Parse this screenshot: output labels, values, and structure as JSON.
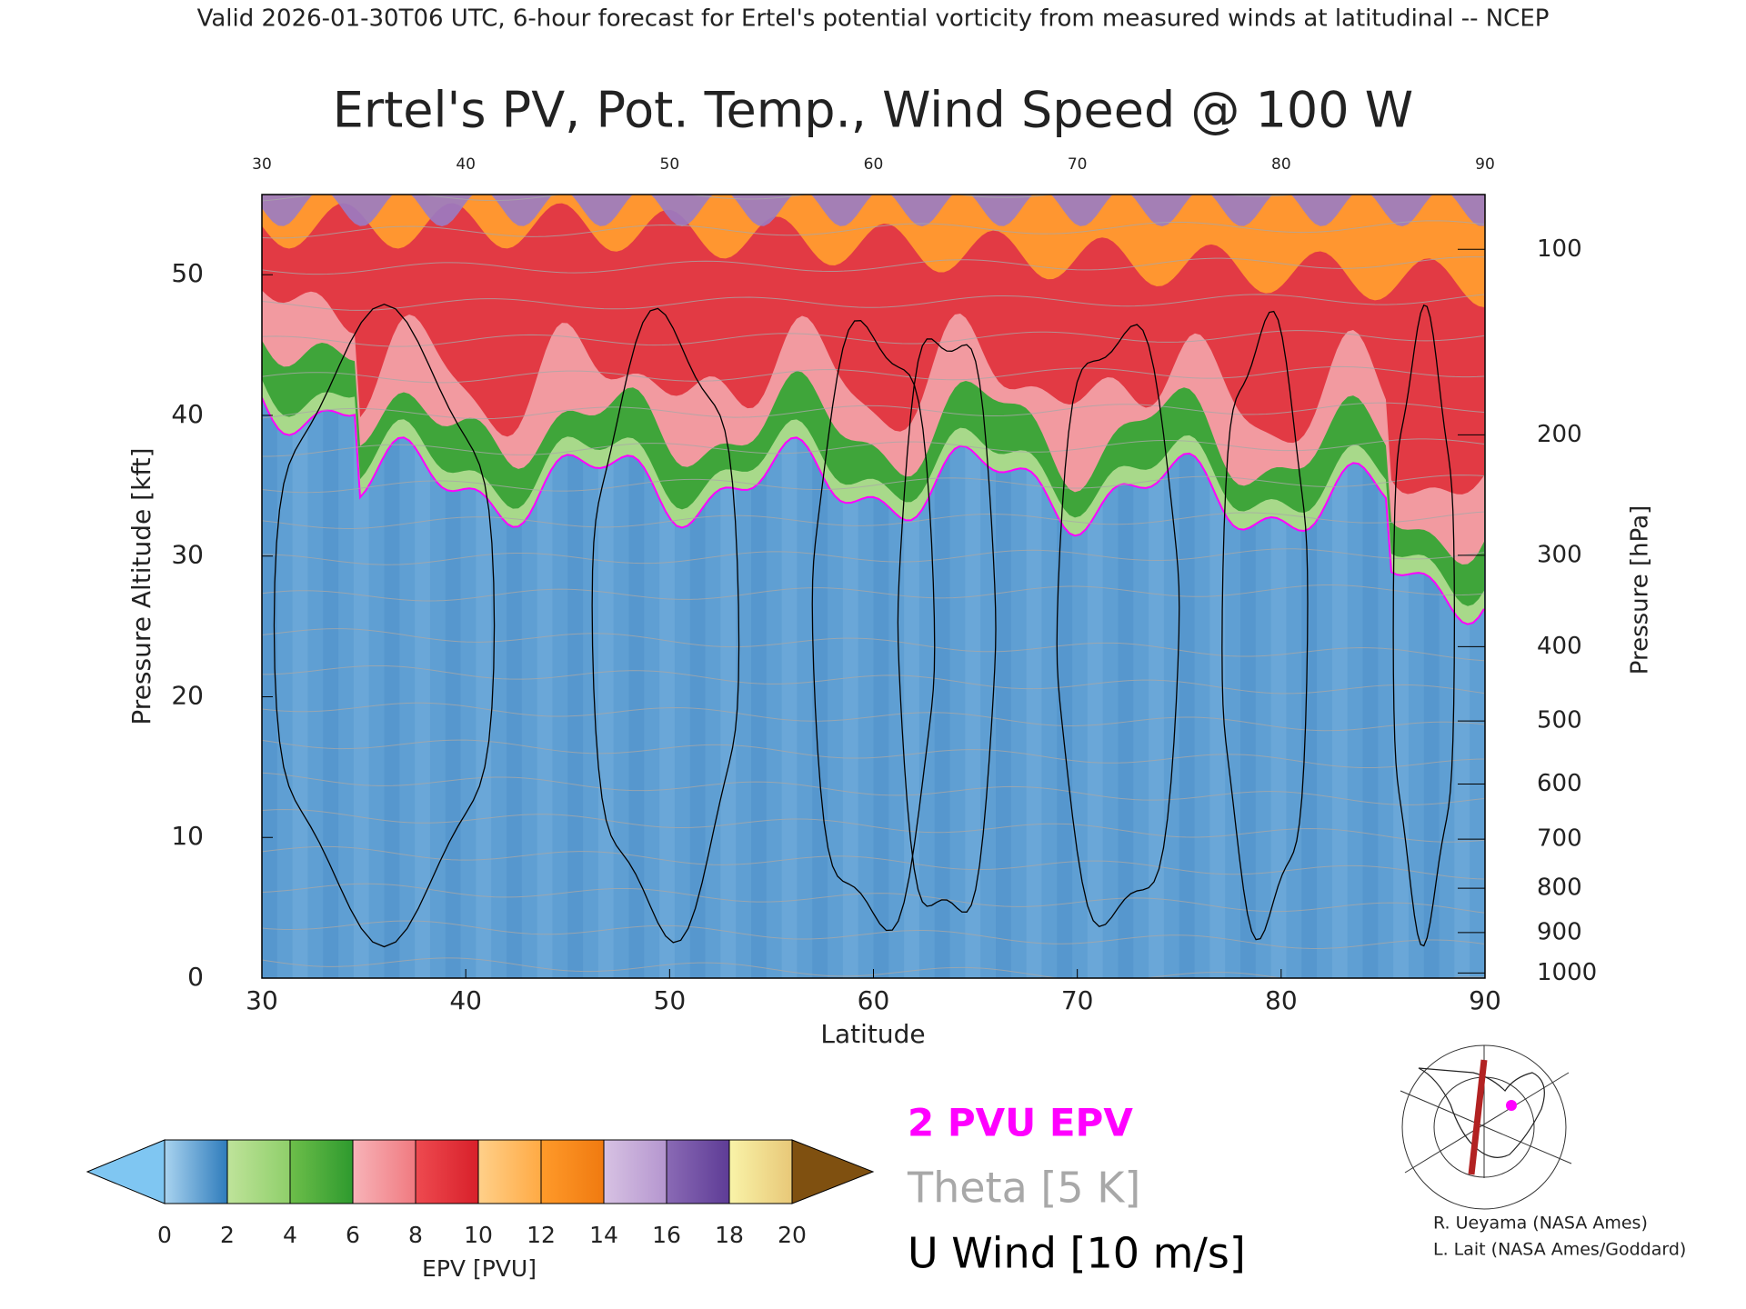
{
  "header": "Valid 2026-01-30T06 UTC, 6-hour forecast for Ertel's potential vorticity from measured winds at latitudinal -- NCEP",
  "chart_data": {
    "type": "contour",
    "title": "Ertel's PV, Pot. Temp., Wind Speed @ 100 W",
    "x_label": "Latitude",
    "y_label": "Pressure Altitude [kft]",
    "y2_label": "Pressure [hPa]",
    "xlim": [
      30,
      90
    ],
    "xticks": [
      30,
      40,
      50,
      60,
      70,
      80,
      90
    ],
    "ylim": [
      0,
      55.7
    ],
    "yticks": [
      0,
      10,
      20,
      30,
      40,
      50
    ],
    "y2ticks": [
      100,
      200,
      300,
      400,
      500,
      600,
      700,
      800,
      900,
      1000
    ],
    "colorbar": {
      "label": "EPV [PVU]",
      "ticks": [
        0,
        2,
        4,
        6,
        8,
        10,
        12,
        14,
        16,
        18,
        20
      ],
      "colors": [
        [
          "#a9d3ef",
          "#2f7cbc"
        ],
        [
          "#bfe39a",
          "#8fcf6a"
        ],
        [
          "#6dbe4a",
          "#2e9a2e"
        ],
        [
          "#f7b3b8",
          "#f07a80"
        ],
        [
          "#ee4a50",
          "#d8202a"
        ],
        [
          "#ffd08a",
          "#ffaa44"
        ],
        [
          "#ff9a2a",
          "#f07a10"
        ],
        [
          "#d7c2e3",
          "#b596cf"
        ],
        [
          "#8a6ab5",
          "#5e3c96"
        ],
        [
          "#f9f3a8",
          "#e8c878"
        ]
      ],
      "under_color": "#7fc6f2",
      "over_color": "#7f5010"
    },
    "legend": [
      {
        "name": "2 PVU EPV",
        "color": "#ff00ff"
      },
      {
        "name": "Theta [5 K]",
        "color": "#a8a8a8"
      },
      {
        "name": "U Wind [10 m/s]",
        "color": "#000000"
      }
    ],
    "credits": [
      "R. Ueyama (NASA Ames)",
      "L. Lait (NASA Ames/Goddard)"
    ]
  }
}
